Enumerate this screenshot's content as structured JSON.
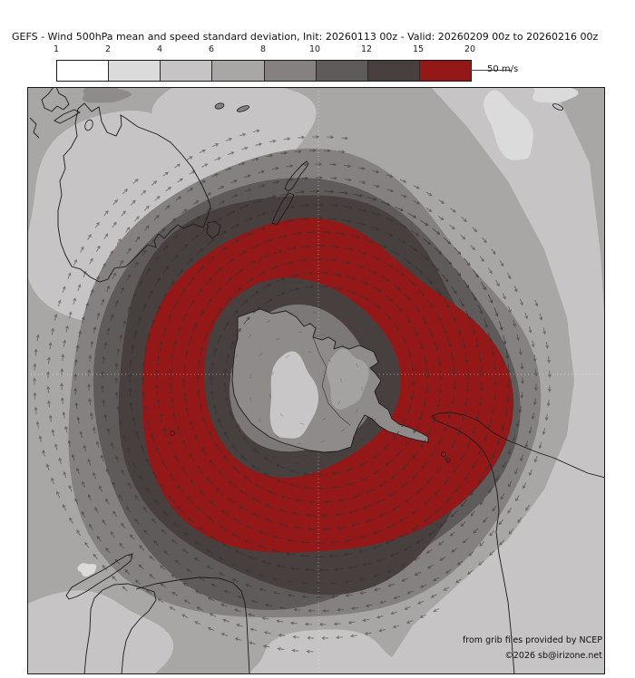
{
  "header": {
    "title": "GEFS - Wind 500hPa mean and speed standard deviation, Init: 20260113 00z - Valid: 20260209 00z to 20260216 00z"
  },
  "colorbar": {
    "ticks": [
      "1",
      "2",
      "4",
      "6",
      "8",
      "10",
      "12",
      "15",
      "20"
    ],
    "segments": [
      {
        "label": "1-2",
        "color": "#ffffff"
      },
      {
        "label": "2-4",
        "color": "#dcdbdb"
      },
      {
        "label": "4-6",
        "color": "#c6c4c4"
      },
      {
        "label": "6-8",
        "color": "#a9a6a6"
      },
      {
        "label": "8-10",
        "color": "#868181"
      },
      {
        "label": "10-12",
        "color": "#605b5b"
      },
      {
        "label": "12-15",
        "color": "#483f3f"
      },
      {
        "label": "15-20",
        "color": "#941818"
      }
    ],
    "reference_arrow": {
      "value": "50",
      "unit": "m/s"
    }
  },
  "map": {
    "attribution_line1": "from grib files provided by NCEP",
    "attribution_line2": "©2026 sb@irizone.net",
    "colors": {
      "background": "#a9a6a6",
      "light": "#c6c4c4",
      "lightest": "#dcdbdb",
      "band_8_10": "#868181",
      "band_10_12": "#605b5b",
      "band_12_15": "#483f3f",
      "band_15_20": "#941818",
      "inner_sea": "#7d7878",
      "antarctica_interior": "#8f8b8b",
      "antarctica_core": "#c8c6c6",
      "antarctica_east": "#a5a2a2",
      "coastline": "#1b1b1b",
      "arrow": "#363232",
      "gridline": "#f0eeee",
      "frame": "#1a1a1a"
    }
  }
}
